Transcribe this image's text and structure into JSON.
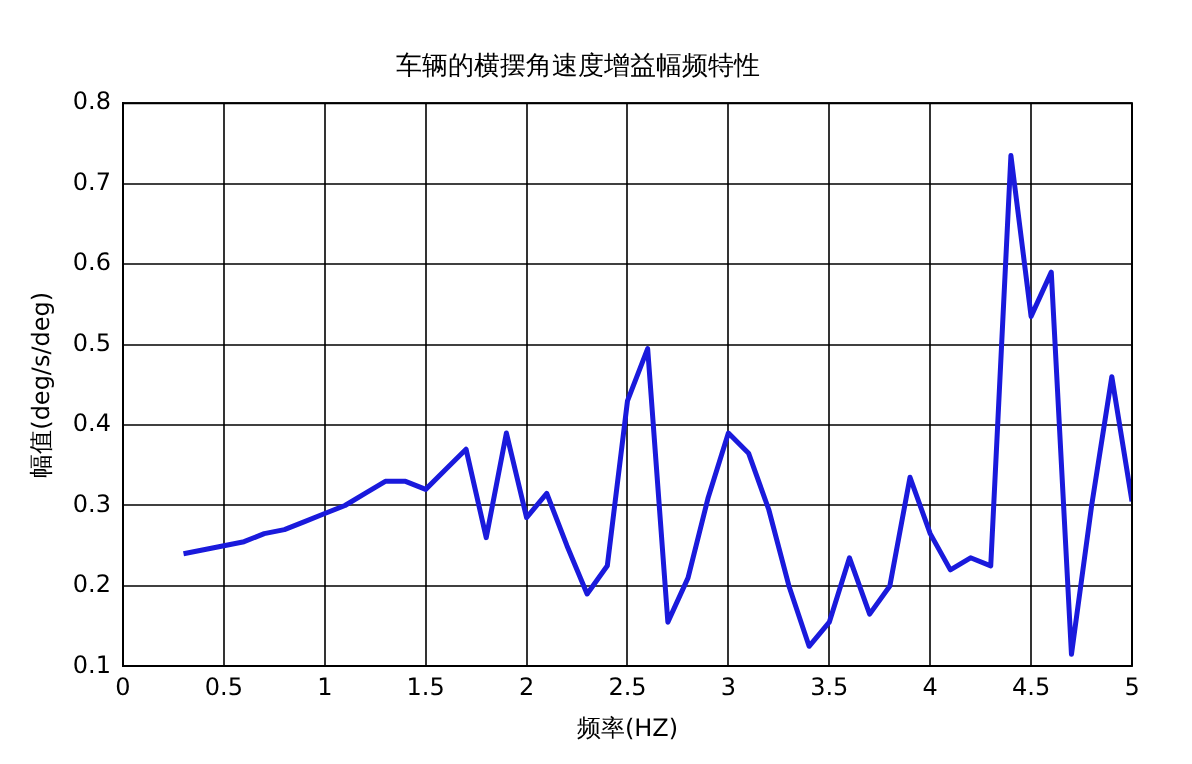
{
  "chart_data": {
    "type": "line",
    "title": "车辆的横摆角速度增益幅频特性",
    "xlabel": "频率(HZ)",
    "ylabel": "幅值(deg/s/deg)",
    "x": [
      0.3,
      0.4,
      0.5,
      0.6,
      0.7,
      0.8,
      0.9,
      1.0,
      1.1,
      1.2,
      1.3,
      1.4,
      1.5,
      1.6,
      1.7,
      1.8,
      1.9,
      2.0,
      2.1,
      2.2,
      2.3,
      2.4,
      2.5,
      2.6,
      2.7,
      2.8,
      2.9,
      3.0,
      3.1,
      3.2,
      3.3,
      3.4,
      3.5,
      3.6,
      3.7,
      3.8,
      3.9,
      4.0,
      4.1,
      4.2,
      4.3,
      4.4,
      4.5,
      4.6,
      4.7,
      4.8,
      4.9,
      5.0
    ],
    "series": [
      {
        "color": "#1a1adc",
        "values": [
          0.24,
          0.245,
          0.25,
          0.255,
          0.265,
          0.27,
          0.28,
          0.29,
          0.3,
          0.315,
          0.33,
          0.33,
          0.32,
          0.345,
          0.37,
          0.26,
          0.39,
          0.285,
          0.315,
          0.25,
          0.19,
          0.225,
          0.43,
          0.495,
          0.155,
          0.21,
          0.31,
          0.39,
          0.365,
          0.295,
          0.2,
          0.125,
          0.155,
          0.235,
          0.165,
          0.2,
          0.335,
          0.265,
          0.22,
          0.235,
          0.225,
          0.735,
          0.535,
          0.59,
          0.115,
          0.3,
          0.46,
          0.305
        ]
      }
    ],
    "xlim": [
      0,
      5
    ],
    "xticks": [
      0,
      0.5,
      1,
      1.5,
      2,
      2.5,
      3,
      3.5,
      4,
      4.5,
      5
    ],
    "ylim": [
      0.1,
      0.8
    ],
    "yticks": [
      0.1,
      0.2,
      0.3,
      0.4,
      0.5,
      0.6,
      0.7,
      0.8
    ],
    "grid": true,
    "legend": false,
    "marker": "none",
    "line_style": "solid"
  }
}
